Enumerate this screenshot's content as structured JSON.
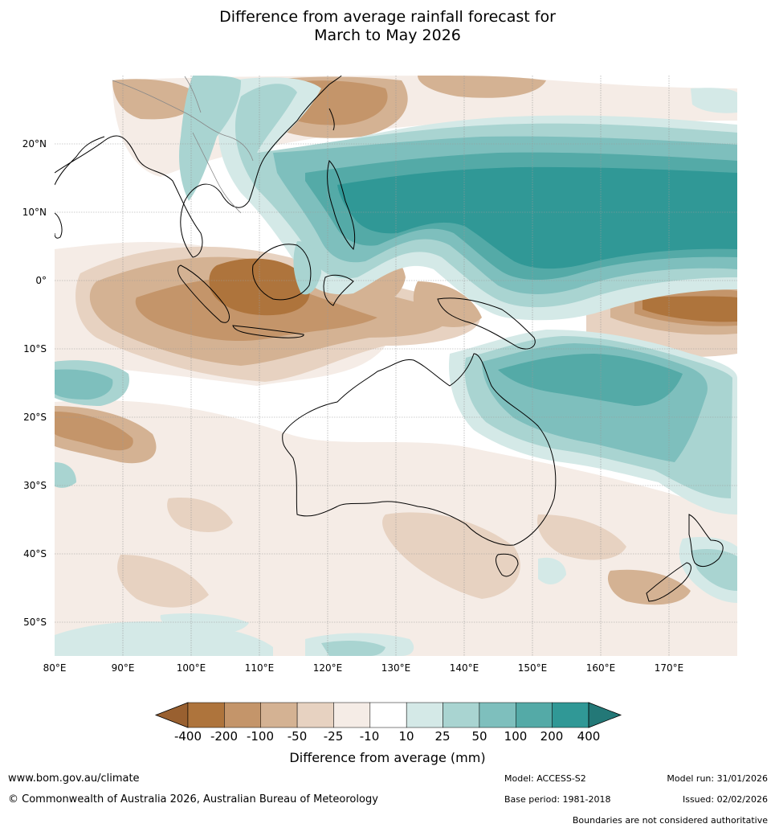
{
  "title": {
    "line1": "Difference from average rainfall forecast for",
    "line2": "March to May 2026"
  },
  "map": {
    "lon_range": [
      80,
      180
    ],
    "lat_range": [
      -55,
      30
    ],
    "lat_ticks": [
      "20°N",
      "10°N",
      "0°",
      "10°S",
      "20°S",
      "30°S",
      "40°S",
      "50°S"
    ],
    "lon_ticks": [
      "80°E",
      "90°E",
      "100°E",
      "110°E",
      "120°E",
      "130°E",
      "140°E",
      "150°E",
      "160°E",
      "170°E"
    ],
    "gridlines": true
  },
  "legend": {
    "title": "Difference from average (mm)",
    "ticks": [
      "-400",
      "-200",
      "-100",
      "-50",
      "-25",
      "-10",
      "10",
      "25",
      "50",
      "100",
      "200",
      "400"
    ],
    "colors": [
      "#996030",
      "#ae743c",
      "#c4956a",
      "#d4b293",
      "#e7d2c1",
      "#f5ece6",
      "#ffffff",
      "#d4e9e7",
      "#a9d4d1",
      "#7ebfbd",
      "#54aaa7",
      "#309896",
      "#237877"
    ]
  },
  "footer": {
    "website": "www.bom.gov.au/climate",
    "copyright": "© Commonwealth of Australia 2026, Australian Bureau of Meteorology",
    "model": "Model: ACCESS-S2",
    "base_period": "Base period: 1981-2018",
    "model_run": "Model run: 31/01/2026",
    "issued": "Issued: 02/02/2026",
    "disclaimer": "Boundaries are not considered authoritative"
  }
}
